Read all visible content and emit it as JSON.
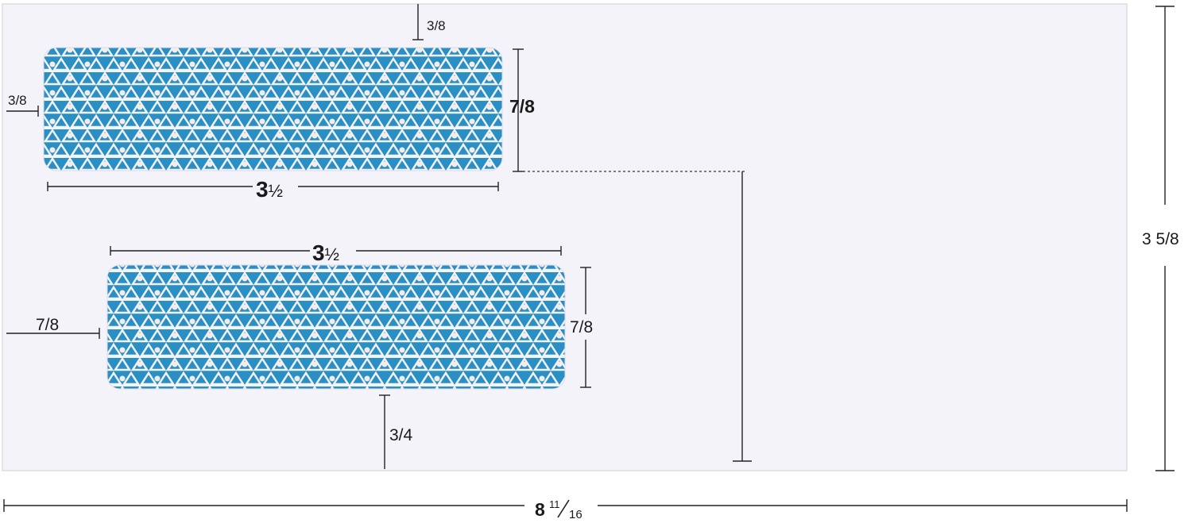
{
  "envelope": {
    "paper_color": "#f4f3f9",
    "window_color": "#2a8fc4",
    "window_pattern": "security-tint-triangle-pattern"
  },
  "dimensions": {
    "top_window_top_margin": "3/8",
    "top_window_left_margin": "3/8",
    "top_window_height": "7/8",
    "top_window_width_whole": "3",
    "top_window_width_frac": "½",
    "bottom_window_width_whole": "3",
    "bottom_window_width_frac": "½",
    "bottom_window_left_margin": "7/8",
    "bottom_window_height": "7/8",
    "bottom_window_bottom_margin": "3/4",
    "envelope_height": "3 5/8",
    "envelope_width_whole": "8",
    "envelope_width_num": "11",
    "envelope_width_den": "16"
  }
}
